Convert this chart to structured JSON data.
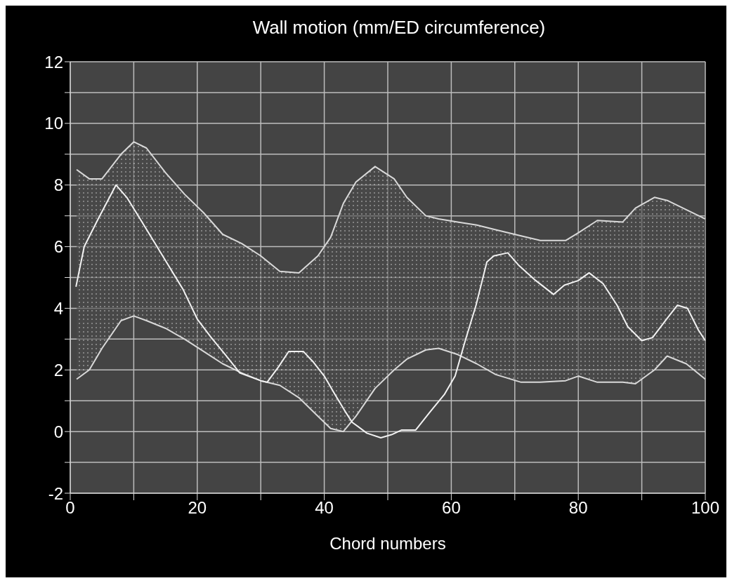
{
  "chart_data": {
    "type": "line",
    "title": "Wall motion (mm/ED circumference)",
    "xlabel": "Chord numbers",
    "xlim": [
      0,
      100
    ],
    "xticks": [
      0,
      {
        "value": 10,
        "label": null
      },
      20,
      {
        "value": 30,
        "label": null
      },
      40,
      {
        "value": 50,
        "label": null
      },
      60,
      {
        "value": 70,
        "label": null
      },
      80,
      {
        "value": 90,
        "label": null
      },
      100
    ],
    "ylim": [
      -2,
      12
    ],
    "yticks": [
      -2,
      {
        "value": -1,
        "label": null
      },
      0,
      {
        "value": 1,
        "label": null
      },
      2,
      {
        "value": 3,
        "label": null
      },
      4,
      {
        "value": 5,
        "label": null
      },
      6,
      {
        "value": 7,
        "label": null
      },
      8,
      {
        "value": 9,
        "label": null
      },
      10,
      {
        "value": 11,
        "label": null
      },
      12
    ],
    "grid": true,
    "line_style": "solid",
    "series": [
      {
        "type": "area",
        "color": "#d9d9d9",
        "x": [
          1,
          3,
          5,
          8,
          10,
          12,
          15,
          18,
          21,
          24,
          27,
          30,
          33,
          36,
          39,
          41,
          43,
          45,
          48,
          51,
          53,
          56,
          58,
          61,
          64,
          67,
          71,
          74,
          78,
          80,
          83,
          87,
          89,
          92,
          94,
          97,
          100
        ],
        "values": [
          8.5,
          8.2,
          8.2,
          9.0,
          9.4,
          9.2,
          8.4,
          7.7,
          7.1,
          6.4,
          6.1,
          5.7,
          5.2,
          5.15,
          5.7,
          6.3,
          7.4,
          8.1,
          8.6,
          8.2,
          7.6,
          7.0,
          6.9,
          6.8,
          6.7,
          6.55,
          6.35,
          6.2,
          6.2,
          6.45,
          6.85,
          6.8,
          7.25,
          7.6,
          7.5,
          7.2,
          6.9
        ]
      },
      {
        "color": "#d9d9d9",
        "x": [
          1,
          3,
          5,
          8,
          10,
          12,
          15,
          18,
          21,
          24,
          27,
          30,
          33,
          36,
          39,
          41,
          43,
          45,
          48,
          51,
          53,
          56,
          58,
          61,
          64,
          67,
          71,
          74,
          78,
          80,
          83,
          87,
          89,
          92,
          94,
          97,
          100
        ],
        "values": [
          1.7,
          2.0,
          2.7,
          3.6,
          3.75,
          3.6,
          3.35,
          3.0,
          2.6,
          2.2,
          1.9,
          1.65,
          1.5,
          1.1,
          0.5,
          0.1,
          0.0,
          0.5,
          1.4,
          2.0,
          2.35,
          2.65,
          2.7,
          2.5,
          2.2,
          1.85,
          1.6,
          1.6,
          1.65,
          1.8,
          1.6,
          1.6,
          1.55,
          2.0,
          2.45,
          2.2,
          1.7
        ]
      },
      {
        "color": "#f2f2f2",
        "x": [
          0.9,
          2.2,
          4.4,
          7.2,
          8.9,
          11,
          14.4,
          17.8,
          20,
          22.2,
          24.4,
          26.7,
          30,
          31,
          32.8,
          34.4,
          36.7,
          38.3,
          40,
          41.7,
          43.3,
          44.4,
          46.7,
          48.9,
          50.6,
          52.2,
          54.4,
          56.7,
          58.9,
          60.6,
          62.2,
          63.9,
          65.6,
          66.7,
          68.9,
          70.6,
          73.3,
          76.1,
          77.8,
          80,
          81.7,
          83.9,
          86.1,
          87.8,
          90,
          91.7,
          93.9,
          95.6,
          97.2,
          98.9,
          100
        ],
        "values": [
          4.7,
          6.0,
          6.9,
          8.0,
          7.6,
          6.9,
          5.75,
          4.6,
          3.65,
          3.05,
          2.5,
          1.9,
          1.65,
          1.6,
          2.1,
          2.6,
          2.6,
          2.25,
          1.8,
          1.2,
          0.65,
          0.3,
          -0.05,
          -0.2,
          -0.1,
          0.05,
          0.05,
          0.65,
          1.2,
          1.8,
          2.95,
          4.1,
          5.5,
          5.7,
          5.8,
          5.4,
          4.9,
          4.45,
          4.75,
          4.9,
          5.15,
          4.8,
          4.1,
          3.4,
          2.95,
          3.05,
          3.65,
          4.1,
          4.0,
          3.3,
          2.95
        ]
      }
    ]
  }
}
